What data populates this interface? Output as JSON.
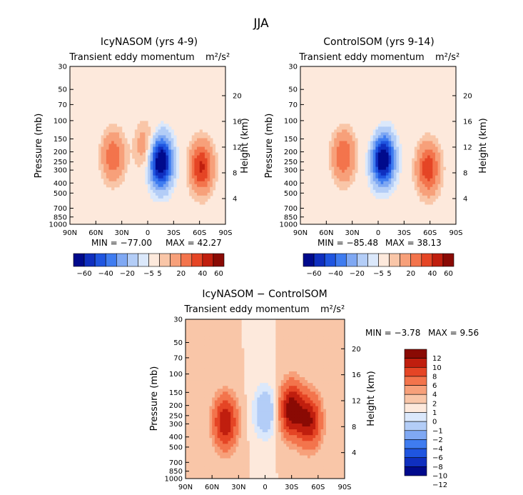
{
  "figure": {
    "title": "JJA"
  },
  "colors": {
    "levels_main": [
      "#000a8c",
      "#0f2fbf",
      "#1f55e0",
      "#3f7cf0",
      "#7fa8f3",
      "#b3cdf7",
      "#dbe8fb",
      "#fde9dc",
      "#f9c6a8",
      "#f7a07a",
      "#f3744c",
      "#e54525",
      "#c01e0e",
      "#8a0a04"
    ],
    "levels_diff": [
      "#000a8c",
      "#0f2fbf",
      "#1f55e0",
      "#3f7cf0",
      "#7fa8f3",
      "#b3cdf7",
      "#dbe8fb",
      "#fde9dc",
      "#f9c6a8",
      "#f7a07a",
      "#f3744c",
      "#e54525",
      "#c01e0e",
      "#8a0a04"
    ]
  },
  "chart_data": [
    {
      "type": "heatmap",
      "title": "IcyNASOM (yrs 4-9)",
      "subtitle": "Transient eddy momentum",
      "units": "m²/s²",
      "xlabel": "",
      "ylabel": "Pressure (mb)",
      "y2label": "Height (km)",
      "x_ticks": [
        "90N",
        "60N",
        "30N",
        "0",
        "30S",
        "60S",
        "90S"
      ],
      "y_ticks": [
        "30",
        "50",
        "70",
        "100",
        "150",
        "200",
        "250",
        "300",
        "400",
        "500",
        "700",
        "850",
        "1000"
      ],
      "y2_ticks": [
        "20",
        "16",
        "12",
        "8",
        "4"
      ],
      "min_text": "MIN = −77.00",
      "max_text": "MAX = 42.27",
      "min": -77.0,
      "max": 42.27,
      "colorbar_labels": [
        "−60",
        "−40",
        "−20",
        "−5",
        "5",
        "20",
        "40",
        "60"
      ],
      "levels": [
        -60,
        -50,
        -40,
        -30,
        -20,
        -10,
        -5,
        5,
        10,
        20,
        30,
        40,
        50,
        60
      ],
      "features": [
        {
          "lat": 40,
          "p": 220,
          "value": 28
        },
        {
          "lat": -15,
          "p": 250,
          "value": -77
        },
        {
          "lat": -62,
          "p": 280,
          "value": 42.27
        },
        {
          "lat": 2,
          "p": 180,
          "value": 18
        }
      ]
    },
    {
      "type": "heatmap",
      "title": "ControlSOM (yrs 9-14)",
      "subtitle": "Transient eddy momentum",
      "units": "m²/s²",
      "xlabel": "",
      "ylabel": "Pressure (mb)",
      "y2label": "Height (km)",
      "x_ticks": [
        "90N",
        "60N",
        "30N",
        "0",
        "30S",
        "60S",
        "90S"
      ],
      "y_ticks": [
        "30",
        "50",
        "70",
        "100",
        "150",
        "200",
        "250",
        "300",
        "400",
        "500",
        "700",
        "850",
        "1000"
      ],
      "y2_ticks": [
        "20",
        "16",
        "12",
        "8",
        "4"
      ],
      "min_text": "MIN = −85.48",
      "max_text": "MAX = 38.13",
      "min": -85.48,
      "max": 38.13,
      "colorbar_labels": [
        "−60",
        "−40",
        "−20",
        "−5",
        "5",
        "20",
        "40",
        "60"
      ],
      "levels": [
        -60,
        -50,
        -40,
        -30,
        -20,
        -10,
        -5,
        5,
        10,
        20,
        30,
        40,
        50,
        60
      ],
      "features": [
        {
          "lat": 40,
          "p": 220,
          "value": 30
        },
        {
          "lat": -5,
          "p": 230,
          "value": -85.48
        },
        {
          "lat": -58,
          "p": 290,
          "value": 38.13
        },
        {
          "lat": 0,
          "p": 180,
          "value": 15
        }
      ]
    },
    {
      "type": "heatmap",
      "title": "IcyNASOM − ControlSOM",
      "subtitle": "Transient eddy momentum",
      "units": "m²/s²",
      "xlabel": "",
      "ylabel": "Pressure (mb)",
      "y2label": "Height (km)",
      "x_ticks": [
        "90N",
        "60N",
        "30N",
        "0",
        "30S",
        "60S",
        "90S"
      ],
      "y_ticks": [
        "30",
        "50",
        "70",
        "100",
        "150",
        "200",
        "250",
        "300",
        "400",
        "500",
        "700",
        "850",
        "1000"
      ],
      "y2_ticks": [
        "20",
        "16",
        "12",
        "8",
        "4"
      ],
      "min_text": "MIN = −3.78",
      "max_text": "MAX = 9.56",
      "min": -3.78,
      "max": 9.56,
      "colorbar_labels": [
        "12",
        "10",
        "8",
        "6",
        "4",
        "2",
        "1",
        "0",
        "−1",
        "−2",
        "−4",
        "−6",
        "−8",
        "−10",
        "−12"
      ],
      "levels": [
        -12,
        -10,
        -8,
        -6,
        -4,
        -2,
        -1,
        0,
        1,
        2,
        4,
        6,
        8,
        10,
        12
      ],
      "features": [
        {
          "lat": 45,
          "p": 290,
          "value": 8
        },
        {
          "lat": -30,
          "p": 220,
          "value": 9.56
        },
        {
          "lat": -50,
          "p": 280,
          "value": 8
        },
        {
          "lat": 0,
          "p": 230,
          "value": -3.78
        }
      ]
    }
  ]
}
